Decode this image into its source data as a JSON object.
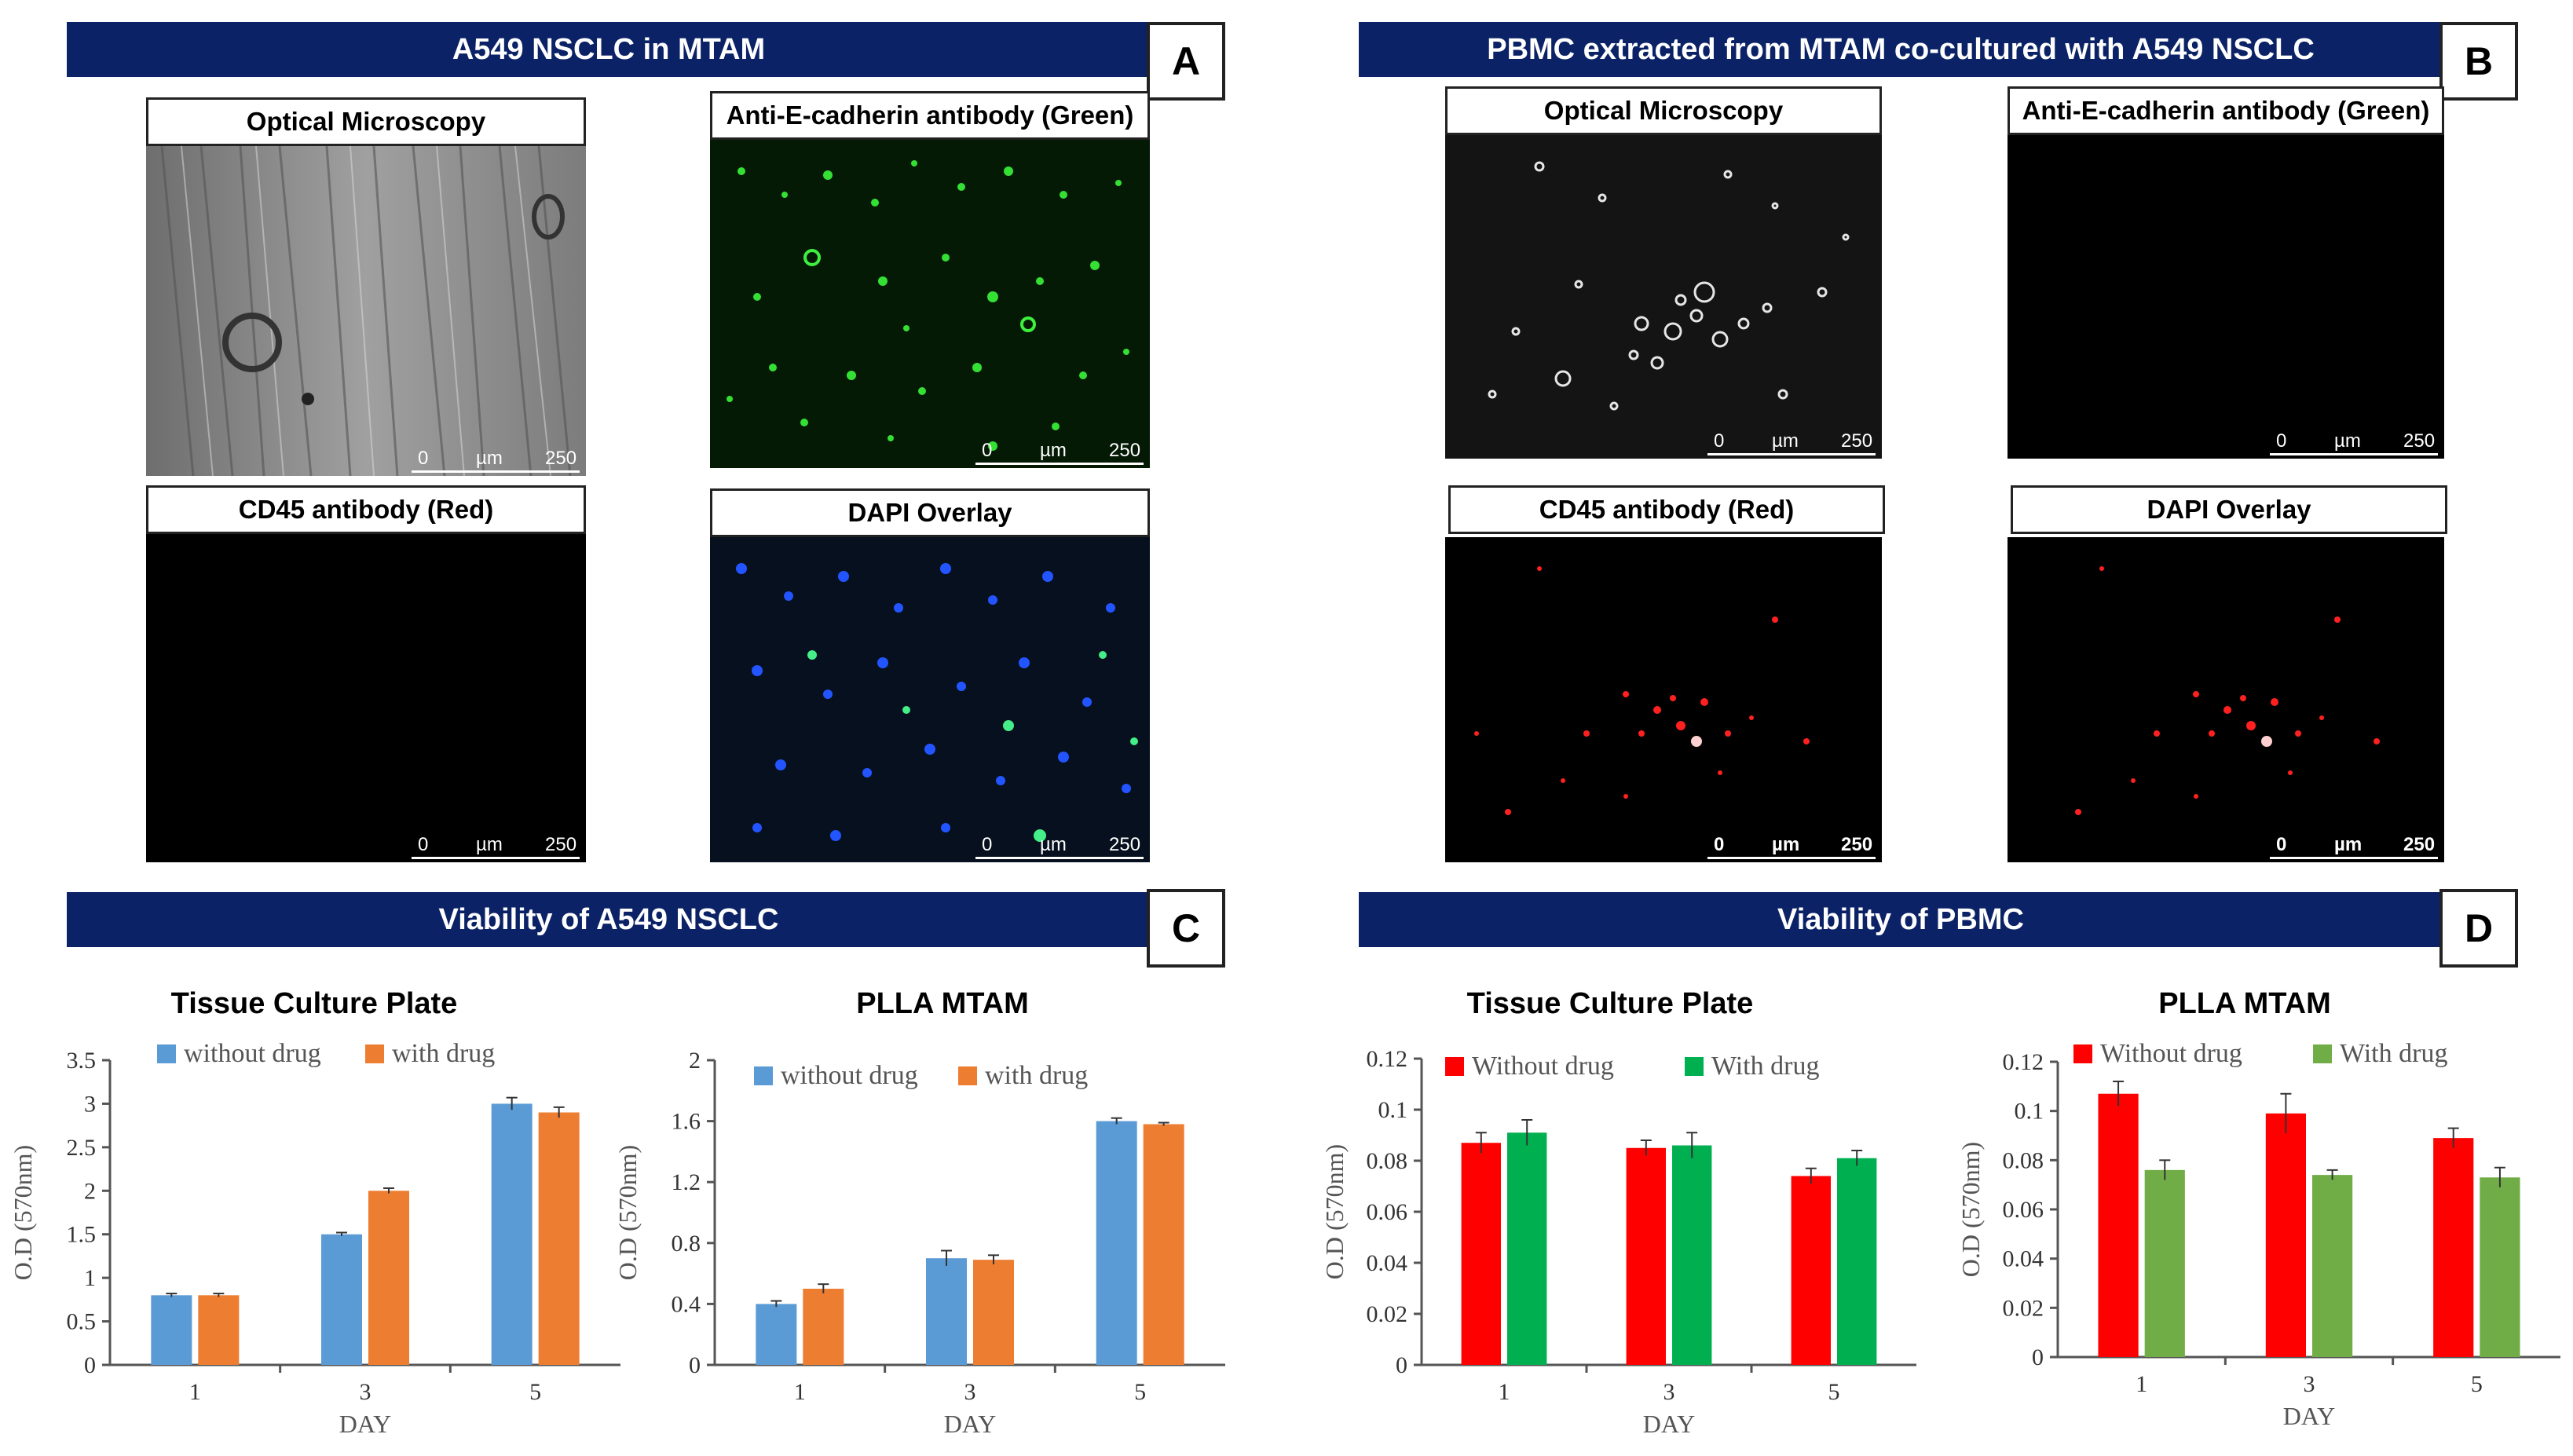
{
  "panelA": {
    "title": "A549 NSCLC in MTAM",
    "letter": "A",
    "images": [
      {
        "title": "Optical Microscopy",
        "scale": [
          "0",
          "µm",
          "250"
        ]
      },
      {
        "title": "Anti-E-cadherin antibody (Green)",
        "scale": [
          "0",
          "µm",
          "250"
        ]
      },
      {
        "title": "CD45 antibody (Red)",
        "scale": [
          "0",
          "µm",
          "250"
        ]
      },
      {
        "title": "DAPI Overlay",
        "scale": [
          "0",
          "µm",
          "250"
        ]
      }
    ]
  },
  "panelB": {
    "title": "PBMC extracted from MTAM co-cultured with A549 NSCLC",
    "letter": "B",
    "images": [
      {
        "title": "Optical Microscopy",
        "scale": [
          "0",
          "µm",
          "250"
        ]
      },
      {
        "title": "Anti-E-cadherin antibody (Green)",
        "scale": [
          "0",
          "µm",
          "250"
        ]
      },
      {
        "title": "CD45 antibody (Red)",
        "scale": [
          "0",
          "µm",
          "250"
        ]
      },
      {
        "title": "DAPI Overlay",
        "scale": [
          "0",
          "µm",
          "250"
        ]
      }
    ]
  },
  "panelC": {
    "title": "Viability of A549 NSCLC",
    "letter": "C"
  },
  "panelD": {
    "title": "Viability of PBMC",
    "letter": "D"
  },
  "colors": {
    "banner": "#0b2266",
    "blue": "#5b9bd5",
    "orange": "#ed7d31",
    "red": "#ff0000",
    "green": "#00b050",
    "lightgreen": "#70ad47"
  },
  "chart_data": [
    {
      "type": "bar",
      "title": "Tissue Culture Plate",
      "xlabel": "DAY",
      "ylabel": "O.D (570nm)",
      "categories": [
        "1",
        "3",
        "5"
      ],
      "ylim": [
        0,
        3.5
      ],
      "yticks": [
        "0",
        "0.5",
        "1",
        "1.5",
        "2",
        "2.5",
        "3",
        "3.5"
      ],
      "legend": "top",
      "series": [
        {
          "name": "without drug",
          "color": "#5b9bd5",
          "values": [
            0.8,
            1.5,
            3.0
          ],
          "errors": [
            0.02,
            0.02,
            0.07
          ]
        },
        {
          "name": "with drug",
          "color": "#ed7d31",
          "values": [
            0.8,
            2.0,
            2.9
          ],
          "errors": [
            0.02,
            0.03,
            0.06
          ]
        }
      ]
    },
    {
      "type": "bar",
      "title": "PLLA MTAM",
      "xlabel": "DAY",
      "ylabel": "O.D (570nm)",
      "categories": [
        "1",
        "3",
        "5"
      ],
      "ylim": [
        0,
        2
      ],
      "yticks": [
        "0",
        "0.4",
        "0.8",
        "1.2",
        "1.6",
        "2"
      ],
      "legend": "top",
      "series": [
        {
          "name": "without drug",
          "color": "#5b9bd5",
          "values": [
            0.4,
            0.7,
            1.6
          ],
          "errors": [
            0.02,
            0.05,
            0.02
          ]
        },
        {
          "name": "with drug",
          "color": "#ed7d31",
          "values": [
            0.5,
            0.69,
            1.58
          ],
          "errors": [
            0.03,
            0.03,
            0.01
          ]
        }
      ]
    },
    {
      "type": "bar",
      "title": "Tissue Culture Plate",
      "xlabel": "DAY",
      "ylabel": "O.D (570nm)",
      "categories": [
        "1",
        "3",
        "5"
      ],
      "ylim": [
        0,
        0.12
      ],
      "yticks": [
        "0",
        "0.02",
        "0.04",
        "0.06",
        "0.08",
        "0.1",
        "0.12"
      ],
      "legend": "top",
      "series": [
        {
          "name": "Without drug",
          "color": "#ff0000",
          "values": [
            0.087,
            0.085,
            0.074
          ],
          "errors": [
            0.004,
            0.003,
            0.003
          ]
        },
        {
          "name": "With drug",
          "color": "#00b050",
          "values": [
            0.091,
            0.086,
            0.081
          ],
          "errors": [
            0.005,
            0.005,
            0.003
          ]
        }
      ]
    },
    {
      "type": "bar",
      "title": "PLLA MTAM",
      "xlabel": "DAY",
      "ylabel": "O.D (570nm)",
      "categories": [
        "1",
        "3",
        "5"
      ],
      "ylim": [
        0,
        0.12
      ],
      "yticks": [
        "0",
        "0.02",
        "0.04",
        "0.06",
        "0.08",
        "0.1",
        "0.12"
      ],
      "legend": "top",
      "series": [
        {
          "name": "Without drug",
          "color": "#ff0000",
          "values": [
            0.107,
            0.099,
            0.089
          ],
          "errors": [
            0.005,
            0.008,
            0.004
          ]
        },
        {
          "name": "With drug",
          "color": "#70ad47",
          "values": [
            0.076,
            0.074,
            0.073
          ],
          "errors": [
            0.004,
            0.002,
            0.004
          ]
        }
      ]
    }
  ]
}
